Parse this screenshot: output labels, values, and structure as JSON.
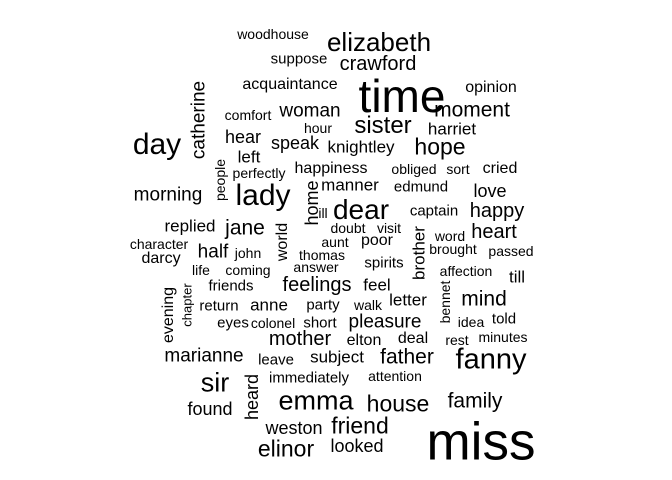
{
  "word_cloud": {
    "text_color": "#000000",
    "background": "#ffffff",
    "words": [
      {
        "text": "woodhouse"
      },
      {
        "text": "elizabeth"
      },
      {
        "text": "suppose"
      },
      {
        "text": "crawford"
      },
      {
        "text": "acquaintance"
      },
      {
        "text": "time"
      },
      {
        "text": "opinion"
      },
      {
        "text": "catherine"
      },
      {
        "text": "comfort"
      },
      {
        "text": "woman"
      },
      {
        "text": "moment"
      },
      {
        "text": "hour"
      },
      {
        "text": "sister"
      },
      {
        "text": "harriet"
      },
      {
        "text": "day"
      },
      {
        "text": "hear"
      },
      {
        "text": "speak"
      },
      {
        "text": "knightley"
      },
      {
        "text": "hope"
      },
      {
        "text": "left"
      },
      {
        "text": "happiness"
      },
      {
        "text": "obliged"
      },
      {
        "text": "sort"
      },
      {
        "text": "cried"
      },
      {
        "text": "perfectly"
      },
      {
        "text": "people"
      },
      {
        "text": "lady"
      },
      {
        "text": "manner"
      },
      {
        "text": "edmund"
      },
      {
        "text": "love"
      },
      {
        "text": "morning"
      },
      {
        "text": "home"
      },
      {
        "text": "dear"
      },
      {
        "text": "ill"
      },
      {
        "text": "captain"
      },
      {
        "text": "happy"
      },
      {
        "text": "replied"
      },
      {
        "text": "jane"
      },
      {
        "text": "doubt"
      },
      {
        "text": "visit"
      },
      {
        "text": "word"
      },
      {
        "text": "heart"
      },
      {
        "text": "character"
      },
      {
        "text": "world"
      },
      {
        "text": "aunt"
      },
      {
        "text": "poor"
      },
      {
        "text": "brother"
      },
      {
        "text": "brought"
      },
      {
        "text": "passed"
      },
      {
        "text": "half"
      },
      {
        "text": "john"
      },
      {
        "text": "thomas"
      },
      {
        "text": "darcy"
      },
      {
        "text": "spirits"
      },
      {
        "text": "answer"
      },
      {
        "text": "life"
      },
      {
        "text": "coming"
      },
      {
        "text": "affection"
      },
      {
        "text": "till"
      },
      {
        "text": "friends"
      },
      {
        "text": "feelings"
      },
      {
        "text": "feel"
      },
      {
        "text": "chapter"
      },
      {
        "text": "mind"
      },
      {
        "text": "evening"
      },
      {
        "text": "return"
      },
      {
        "text": "anne"
      },
      {
        "text": "party"
      },
      {
        "text": "walk"
      },
      {
        "text": "letter"
      },
      {
        "text": "bennet"
      },
      {
        "text": "told"
      },
      {
        "text": "eyes"
      },
      {
        "text": "colonel"
      },
      {
        "text": "short"
      },
      {
        "text": "pleasure"
      },
      {
        "text": "idea"
      },
      {
        "text": "minutes"
      },
      {
        "text": "mother"
      },
      {
        "text": "elton"
      },
      {
        "text": "deal"
      },
      {
        "text": "rest"
      },
      {
        "text": "marianne"
      },
      {
        "text": "leave"
      },
      {
        "text": "subject"
      },
      {
        "text": "father"
      },
      {
        "text": "fanny"
      },
      {
        "text": "sir"
      },
      {
        "text": "immediately"
      },
      {
        "text": "attention"
      },
      {
        "text": "heard"
      },
      {
        "text": "emma"
      },
      {
        "text": "house"
      },
      {
        "text": "family"
      },
      {
        "text": "found"
      },
      {
        "text": "weston"
      },
      {
        "text": "friend"
      },
      {
        "text": "miss"
      },
      {
        "text": "elinor"
      },
      {
        "text": "looked"
      }
    ]
  }
}
